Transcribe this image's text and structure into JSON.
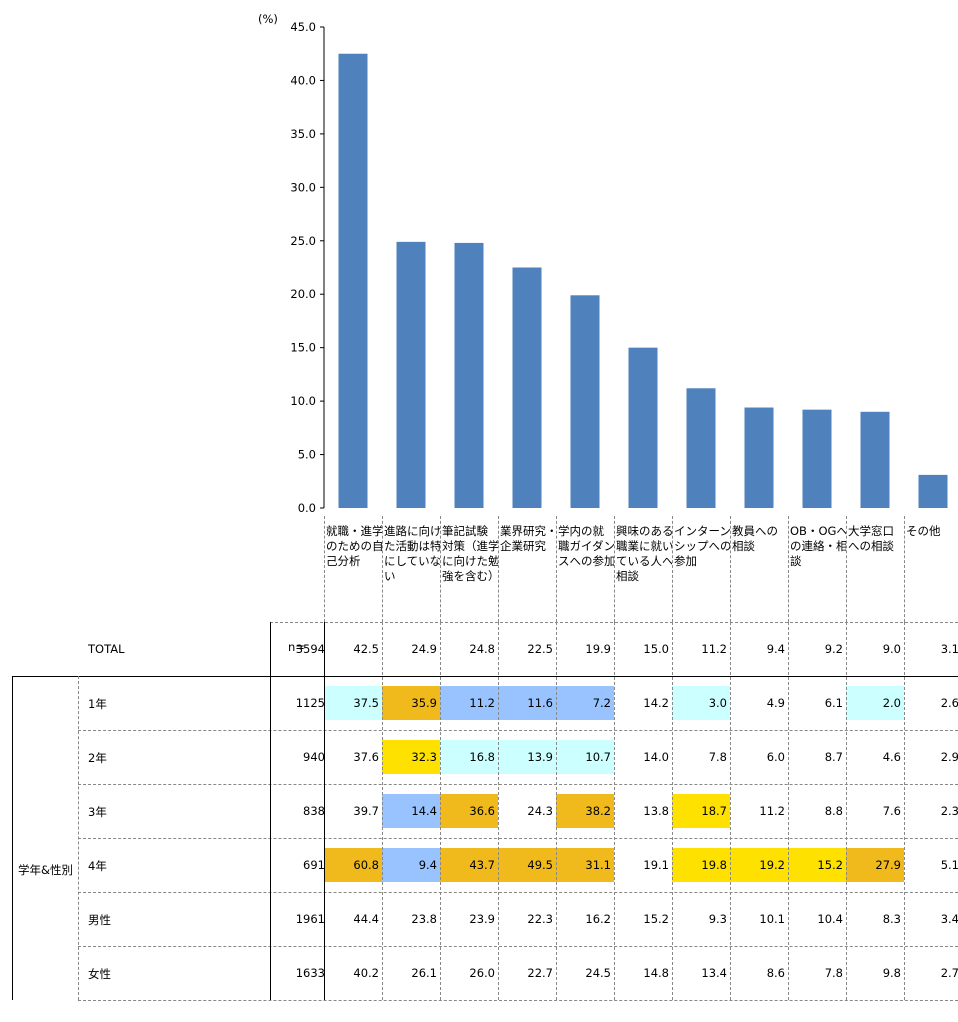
{
  "colors": {
    "bar": "#4f81bd",
    "orange": "#f0ba1c",
    "yellow": "#ffe100",
    "blue": "#99c3ff",
    "lightcyan": "#ccffff"
  },
  "chart_data": {
    "type": "bar",
    "ylabel": "(%)",
    "ylim": [
      0,
      45
    ],
    "yticks": [
      "0.0",
      "5.0",
      "10.0",
      "15.0",
      "20.0",
      "25.0",
      "30.0",
      "35.0",
      "40.0",
      "45.0"
    ],
    "categories": [
      [
        "就職・進学",
        "のための自",
        "己分析"
      ],
      [
        "進路に向け",
        "た活動は特",
        "にしていな",
        "い"
      ],
      [
        "筆記試験",
        "対策（進学",
        "に向けた勉",
        "強を含む）"
      ],
      [
        "業界研究・",
        "企業研究"
      ],
      [
        "学内の就",
        "職ガイダン",
        "スへの参加"
      ],
      [
        "興味のある",
        "職業に就い",
        "ている人へ",
        "相談"
      ],
      [
        "インターン",
        "シップへの",
        "参加"
      ],
      [
        "教員への",
        "相談"
      ],
      [
        "OB・OGへ",
        "の連絡・相",
        "談"
      ],
      [
        "大学窓口",
        "への相談"
      ],
      [
        "その他"
      ]
    ],
    "values": [
      42.5,
      24.9,
      24.8,
      22.5,
      19.9,
      15.0,
      11.2,
      9.4,
      9.2,
      9.0,
      3.1
    ]
  },
  "table": {
    "n_header": "n=",
    "group_label": "学年&性別",
    "rows": [
      {
        "label": "TOTAL",
        "n": "3594",
        "values": [
          "42.5",
          "24.9",
          "24.8",
          "22.5",
          "19.9",
          "15.0",
          "11.2",
          "9.4",
          "9.2",
          "9.0",
          "3.1"
        ],
        "hl": [
          "",
          "",
          "",
          "",
          "",
          "",
          "",
          "",
          "",
          "",
          ""
        ]
      },
      {
        "label": "1年",
        "n": "1125",
        "values": [
          "37.5",
          "35.9",
          "11.2",
          "11.6",
          "7.2",
          "14.2",
          "3.0",
          "4.9",
          "6.1",
          "2.0",
          "2.6"
        ],
        "hl": [
          "lightcyan",
          "orange",
          "blue",
          "blue",
          "blue",
          "",
          "lightcyan",
          "",
          "",
          "lightcyan",
          ""
        ]
      },
      {
        "label": "2年",
        "n": "940",
        "values": [
          "37.6",
          "32.3",
          "16.8",
          "13.9",
          "10.7",
          "14.0",
          "7.8",
          "6.0",
          "8.7",
          "4.6",
          "2.9"
        ],
        "hl": [
          "",
          "yellow",
          "lightcyan",
          "lightcyan",
          "lightcyan",
          "",
          "",
          "",
          "",
          "",
          ""
        ]
      },
      {
        "label": "3年",
        "n": "838",
        "values": [
          "39.7",
          "14.4",
          "36.6",
          "24.3",
          "38.2",
          "13.8",
          "18.7",
          "11.2",
          "8.8",
          "7.6",
          "2.3"
        ],
        "hl": [
          "",
          "blue",
          "orange",
          "",
          "orange",
          "",
          "yellow",
          "",
          "",
          "",
          ""
        ]
      },
      {
        "label": "4年",
        "n": "691",
        "values": [
          "60.8",
          "9.4",
          "43.7",
          "49.5",
          "31.1",
          "19.1",
          "19.8",
          "19.2",
          "15.2",
          "27.9",
          "5.1"
        ],
        "hl": [
          "orange",
          "blue",
          "orange",
          "orange",
          "orange",
          "",
          "yellow",
          "yellow",
          "yellow",
          "orange",
          ""
        ]
      },
      {
        "label": "男性",
        "n": "1961",
        "values": [
          "44.4",
          "23.8",
          "23.9",
          "22.3",
          "16.2",
          "15.2",
          "9.3",
          "10.1",
          "10.4",
          "8.3",
          "3.4"
        ],
        "hl": [
          "",
          "",
          "",
          "",
          "",
          "",
          "",
          "",
          "",
          "",
          ""
        ]
      },
      {
        "label": "女性",
        "n": "1633",
        "values": [
          "40.2",
          "26.1",
          "26.0",
          "22.7",
          "24.5",
          "14.8",
          "13.4",
          "8.6",
          "7.8",
          "9.8",
          "2.7"
        ],
        "hl": [
          "",
          "",
          "",
          "",
          "",
          "",
          "",
          "",
          "",
          "",
          ""
        ]
      }
    ]
  }
}
